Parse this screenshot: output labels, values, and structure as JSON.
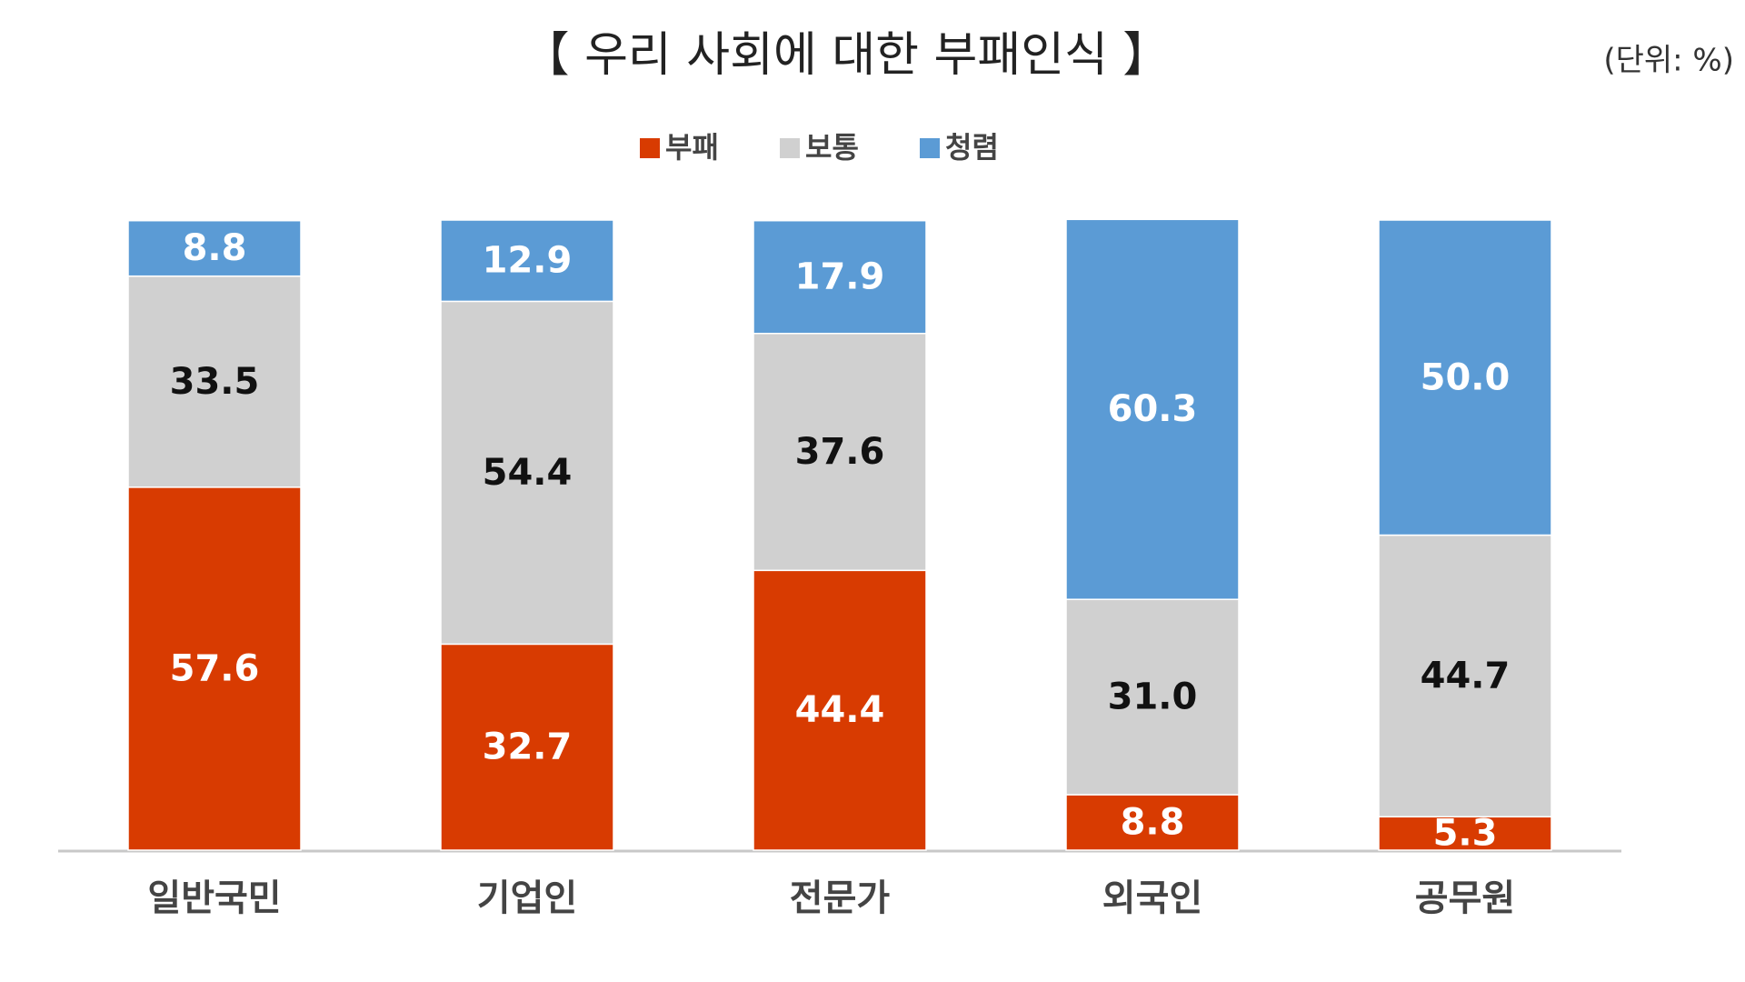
{
  "chart_data": {
    "type": "stacked_bar",
    "title": "【 우리 사회에 대한 부패인식 】",
    "unit": "(단위: %)",
    "categories": [
      "일반국민",
      "기업인",
      "전문가",
      "외국인",
      "공무원"
    ],
    "series": [
      {
        "name": "부패",
        "color": "#d83b01",
        "values": [
          57.6,
          32.7,
          44.4,
          8.8,
          5.3
        ],
        "value_labels": [
          "57.6",
          "32.7",
          "44.4",
          "8.8",
          "5.3"
        ]
      },
      {
        "name": "보통",
        "color": "#d0d0d0",
        "values": [
          33.5,
          54.4,
          37.6,
          31.0,
          44.7
        ],
        "value_labels": [
          "33.5",
          "54.4",
          "37.6",
          "31.0",
          "44.7"
        ]
      },
      {
        "name": "청렴",
        "color": "#5b9bd5",
        "values": [
          8.8,
          12.9,
          17.9,
          60.3,
          50.0
        ],
        "value_labels": [
          "8.8",
          "12.9",
          "17.9",
          "60.3",
          "50.0"
        ]
      }
    ],
    "ylim": [
      0,
      100
    ],
    "legend": "top"
  }
}
